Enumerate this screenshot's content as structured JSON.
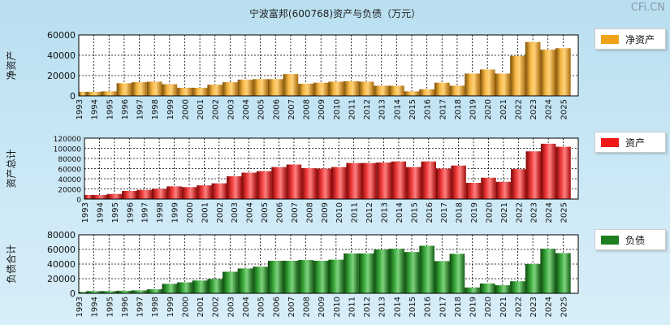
{
  "title": "宁波富邦(600768)资产与负债（万元）",
  "watermark": "CFi.CN",
  "colors": {
    "equity": "#f0a318",
    "assets": "#e31010",
    "liabilities": "#1f8a1f"
  },
  "legend": {
    "equity": "净资产",
    "assets": "资产",
    "liabilities": "负债"
  },
  "chart_data": [
    {
      "type": "bar",
      "title": "",
      "ylabel": "净资产",
      "categories": [
        "1993",
        "1994",
        "1995",
        "1996",
        "1997",
        "1998",
        "1999",
        "2000",
        "2001",
        "2002",
        "2003",
        "2004",
        "2005",
        "2006",
        "2007",
        "2008",
        "2009",
        "2010",
        "2011",
        "2012",
        "2013",
        "2014",
        "2015",
        "2016",
        "2017",
        "2018",
        "2019",
        "2020",
        "2021",
        "2022",
        "2023",
        "2024",
        "2025"
      ],
      "values": [
        4000,
        4000,
        4500,
        12500,
        13500,
        14000,
        11500,
        8000,
        8000,
        11000,
        13500,
        16000,
        16500,
        16500,
        21500,
        12000,
        13000,
        14000,
        14500,
        14000,
        10000,
        10000,
        4500,
        6500,
        13000,
        10000,
        22000,
        26000,
        22000,
        39500,
        53000,
        45500,
        47000
      ],
      "yticks": [
        "60000",
        "40000",
        "20000",
        "0"
      ],
      "ylim": [
        0,
        60000
      ],
      "legend": "净资产"
    },
    {
      "type": "bar",
      "title": "",
      "ylabel": "资产总计",
      "categories": [
        "1993",
        "1994",
        "1995",
        "1996",
        "1997",
        "1998",
        "1999",
        "2000",
        "2001",
        "2002",
        "2003",
        "2004",
        "2005",
        "2006",
        "2007",
        "2008",
        "2009",
        "2010",
        "2011",
        "2012",
        "2013",
        "2014",
        "2015",
        "2016",
        "2017",
        "2018",
        "2019",
        "2020",
        "2021",
        "2022",
        "2023",
        "2024",
        "2025"
      ],
      "values": [
        8000,
        8000,
        10000,
        16000,
        18000,
        20000,
        25000,
        23500,
        27000,
        31000,
        45000,
        52000,
        55000,
        63000,
        68000,
        61000,
        60000,
        63000,
        71000,
        71000,
        72000,
        74000,
        63000,
        74000,
        60000,
        66000,
        32000,
        42000,
        34000,
        59000,
        94000,
        109000,
        103000
      ],
      "yticks": [
        "120000",
        "100000",
        "80000",
        "60000",
        "40000",
        "20000",
        "0"
      ],
      "ylim": [
        0,
        120000
      ],
      "legend": "资产"
    },
    {
      "type": "bar",
      "title": "",
      "ylabel": "负债合计",
      "categories": [
        "1993",
        "1994",
        "1995",
        "1996",
        "1997",
        "1998",
        "1999",
        "2000",
        "2001",
        "2002",
        "2003",
        "2004",
        "2005",
        "2006",
        "2007",
        "2008",
        "2009",
        "2010",
        "2011",
        "2012",
        "2013",
        "2014",
        "2015",
        "2016",
        "2017",
        "2018",
        "2019",
        "2020",
        "2021",
        "2022",
        "2023",
        "2024",
        "2025"
      ],
      "values": [
        2000,
        3000,
        3000,
        3500,
        4000,
        5500,
        13000,
        15000,
        17500,
        19500,
        29500,
        34000,
        36500,
        44500,
        44500,
        45500,
        44500,
        46000,
        54500,
        54500,
        60000,
        61000,
        56500,
        65000,
        44000,
        54000,
        8000,
        13500,
        11000,
        16500,
        40000,
        61000,
        55000
      ],
      "yticks": [
        "80000",
        "60000",
        "40000",
        "20000",
        "0"
      ],
      "ylim": [
        0,
        80000
      ],
      "legend": "负债"
    }
  ]
}
